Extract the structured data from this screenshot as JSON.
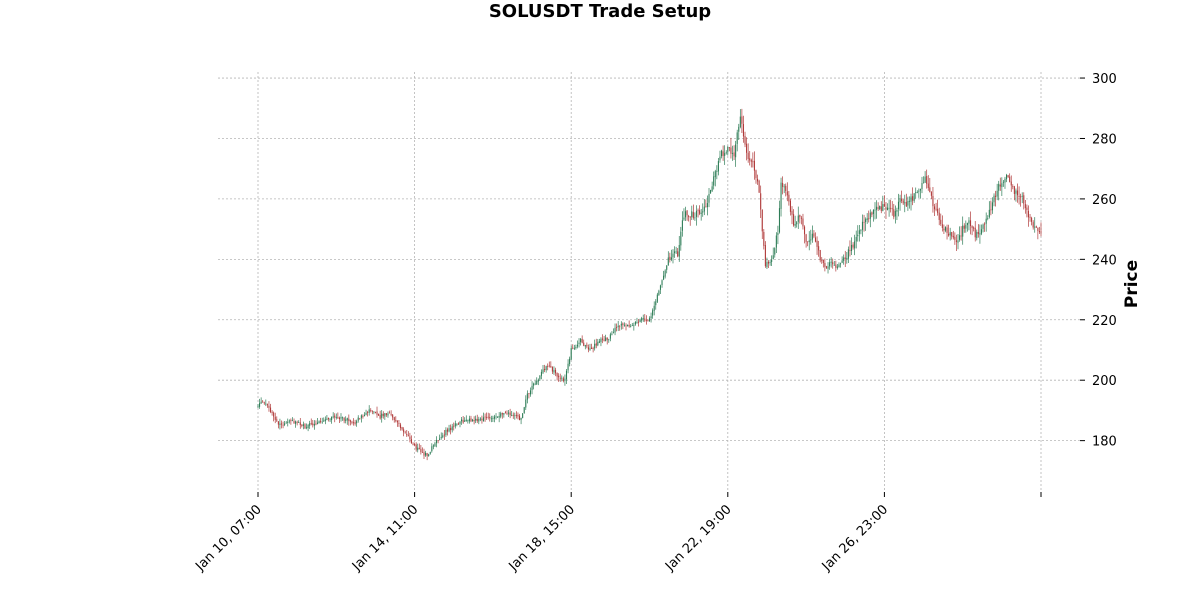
{
  "chart_data": {
    "type": "candlestick",
    "title": "SOLUSDT Trade Setup",
    "xlabel": "",
    "ylabel": "Price",
    "ylim": [
      163,
      302
    ],
    "x_tick_labels": [
      "Jan 10, 07:00",
      "Jan 14, 11:00",
      "Jan 18, 15:00",
      "Jan 22, 19:00",
      "Jan 26, 23:00"
    ],
    "y_ticks": [
      180,
      200,
      220,
      240,
      260,
      280,
      300
    ],
    "grid": true,
    "candle_count": 501,
    "up_color": "#2e7d57",
    "down_color": "#b03a3a",
    "grid_color": "#b5b5b5",
    "price_path": [
      [
        0,
        192
      ],
      [
        4,
        192.5
      ],
      [
        8,
        190
      ],
      [
        14,
        185
      ],
      [
        20,
        187
      ],
      [
        30,
        184.5
      ],
      [
        40,
        186.5
      ],
      [
        50,
        188
      ],
      [
        56,
        187
      ],
      [
        62,
        186
      ],
      [
        70,
        190
      ],
      [
        78,
        188
      ],
      [
        84,
        189.5
      ],
      [
        90,
        185
      ],
      [
        100,
        178
      ],
      [
        108,
        175
      ],
      [
        114,
        180
      ],
      [
        120,
        183
      ],
      [
        130,
        186.5
      ],
      [
        140,
        187
      ],
      [
        150,
        188
      ],
      [
        160,
        189
      ],
      [
        168,
        187
      ],
      [
        172,
        195
      ],
      [
        178,
        200
      ],
      [
        182,
        203
      ],
      [
        186,
        205
      ],
      [
        190,
        202
      ],
      [
        196,
        200
      ],
      [
        200,
        210
      ],
      [
        206,
        213
      ],
      [
        212,
        210
      ],
      [
        218,
        213
      ],
      [
        224,
        214
      ],
      [
        230,
        218
      ],
      [
        238,
        218
      ],
      [
        244,
        220
      ],
      [
        250,
        220
      ],
      [
        256,
        230
      ],
      [
        262,
        240
      ],
      [
        268,
        242
      ],
      [
        272,
        255
      ],
      [
        276,
        255
      ],
      [
        280,
        255
      ],
      [
        286,
        258
      ],
      [
        292,
        268
      ],
      [
        296,
        275
      ],
      [
        300,
        276
      ],
      [
        304,
        275
      ],
      [
        308,
        288
      ],
      [
        312,
        274
      ],
      [
        316,
        272
      ],
      [
        320,
        262
      ],
      [
        324,
        238
      ],
      [
        328,
        240
      ],
      [
        332,
        250
      ],
      [
        334,
        266
      ],
      [
        338,
        260
      ],
      [
        342,
        252
      ],
      [
        346,
        255
      ],
      [
        350,
        245
      ],
      [
        354,
        248
      ],
      [
        358,
        242
      ],
      [
        362,
        237
      ],
      [
        366,
        239
      ],
      [
        370,
        237
      ],
      [
        374,
        240
      ],
      [
        378,
        243
      ],
      [
        382,
        247
      ],
      [
        386,
        252
      ],
      [
        390,
        254
      ],
      [
        394,
        256
      ],
      [
        400,
        258
      ],
      [
        406,
        255
      ],
      [
        410,
        260
      ],
      [
        414,
        258
      ],
      [
        420,
        262
      ],
      [
        426,
        267
      ],
      [
        430,
        260
      ],
      [
        434,
        255
      ],
      [
        438,
        250
      ],
      [
        442,
        248
      ],
      [
        446,
        246
      ],
      [
        450,
        250
      ],
      [
        454,
        252
      ],
      [
        458,
        248
      ],
      [
        462,
        250
      ],
      [
        466,
        254
      ],
      [
        470,
        260
      ],
      [
        474,
        265
      ],
      [
        478,
        267
      ],
      [
        484,
        262
      ],
      [
        488,
        260
      ],
      [
        492,
        255
      ],
      [
        496,
        250
      ]
    ]
  }
}
